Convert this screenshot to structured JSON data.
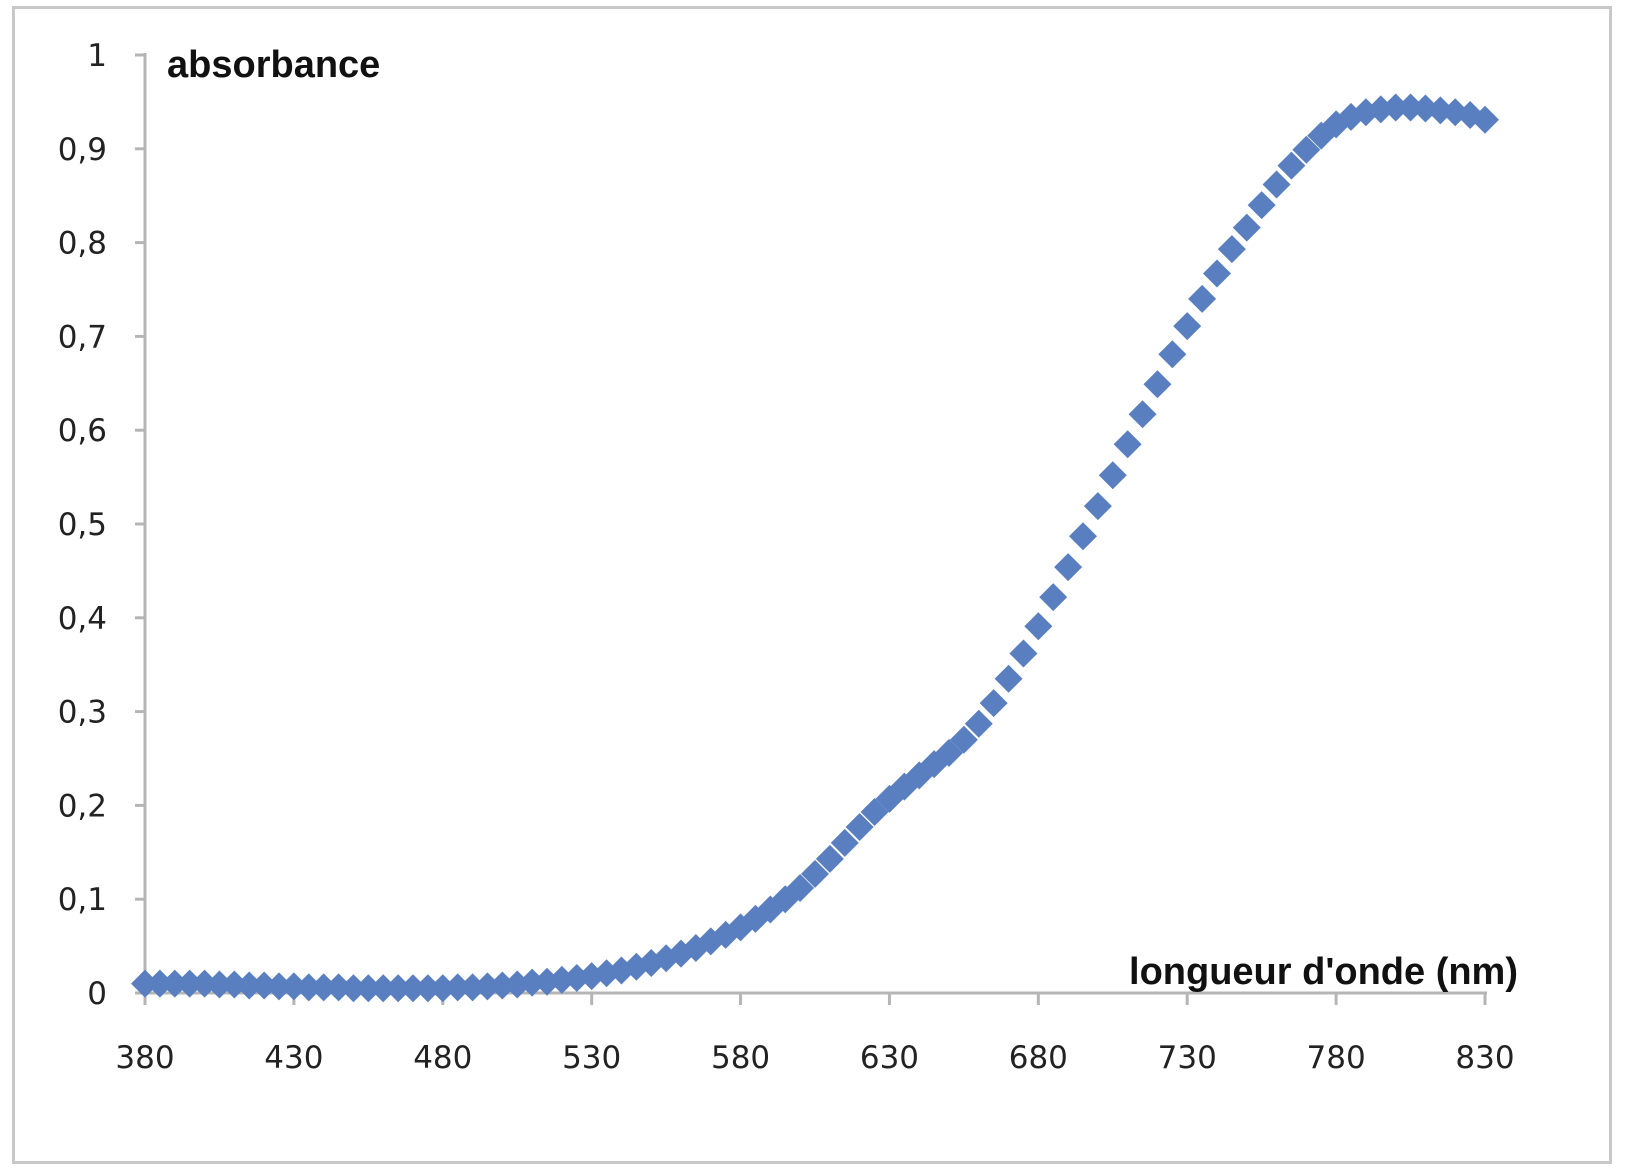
{
  "chart_data": {
    "type": "scatter",
    "title": "",
    "xlabel": "longueur d'onde (nm)",
    "ylabel": "absorbance",
    "xlim": [
      380,
      830
    ],
    "ylim": [
      0,
      1
    ],
    "x_ticks": [
      380,
      430,
      480,
      530,
      580,
      630,
      680,
      730,
      780,
      830
    ],
    "x_tick_labels": [
      "380",
      "430",
      "480",
      "530",
      "580",
      "630",
      "680",
      "730",
      "780",
      "830"
    ],
    "y_ticks": [
      0,
      0.1,
      0.2,
      0.3,
      0.4,
      0.5,
      0.6,
      0.7,
      0.8,
      0.9,
      1
    ],
    "y_tick_labels": [
      "0",
      "0,1",
      "0,2",
      "0,3",
      "0,4",
      "0,5",
      "0,6",
      "0,7",
      "0,8",
      "0,9",
      "1"
    ],
    "grid": false,
    "legend": "none",
    "marker": "diamond",
    "series_color": "#5a7fc0",
    "x": [
      380,
      385,
      390,
      395,
      400,
      405,
      410,
      415,
      420,
      425,
      430,
      435,
      440,
      445,
      450,
      455,
      460,
      465,
      470,
      475,
      480,
      485,
      490,
      495,
      500,
      505,
      510,
      515,
      520,
      525,
      530,
      535,
      540,
      545,
      550,
      555,
      560,
      565,
      570,
      575,
      580,
      585,
      590,
      595,
      600,
      605,
      610,
      615,
      620,
      625,
      630,
      635,
      640,
      645,
      650,
      655,
      660,
      665,
      670,
      675,
      680,
      685,
      690,
      695,
      700,
      705,
      710,
      715,
      720,
      725,
      730,
      735,
      740,
      745,
      750,
      755,
      760,
      765,
      770,
      775,
      780,
      785,
      790,
      795,
      800,
      805,
      810,
      815,
      820,
      825,
      830
    ],
    "y": [
      0.01,
      0.01,
      0.01,
      0.01,
      0.01,
      0.009,
      0.009,
      0.008,
      0.008,
      0.007,
      0.007,
      0.006,
      0.006,
      0.006,
      0.005,
      0.005,
      0.005,
      0.005,
      0.005,
      0.005,
      0.005,
      0.006,
      0.006,
      0.007,
      0.008,
      0.009,
      0.011,
      0.012,
      0.014,
      0.016,
      0.018,
      0.021,
      0.024,
      0.028,
      0.032,
      0.037,
      0.042,
      0.048,
      0.055,
      0.062,
      0.07,
      0.079,
      0.089,
      0.1,
      0.112,
      0.127,
      0.143,
      0.16,
      0.177,
      0.193,
      0.207,
      0.22,
      0.232,
      0.244,
      0.256,
      0.27,
      0.287,
      0.309,
      0.335,
      0.362,
      0.391,
      0.422,
      0.454,
      0.487,
      0.519,
      0.552,
      0.585,
      0.617,
      0.649,
      0.681,
      0.711,
      0.74,
      0.767,
      0.793,
      0.816,
      0.84,
      0.862,
      0.882,
      0.899,
      0.914,
      0.926,
      0.934,
      0.939,
      0.942,
      0.944,
      0.944,
      0.943,
      0.941,
      0.939,
      0.936,
      0.931
    ]
  }
}
